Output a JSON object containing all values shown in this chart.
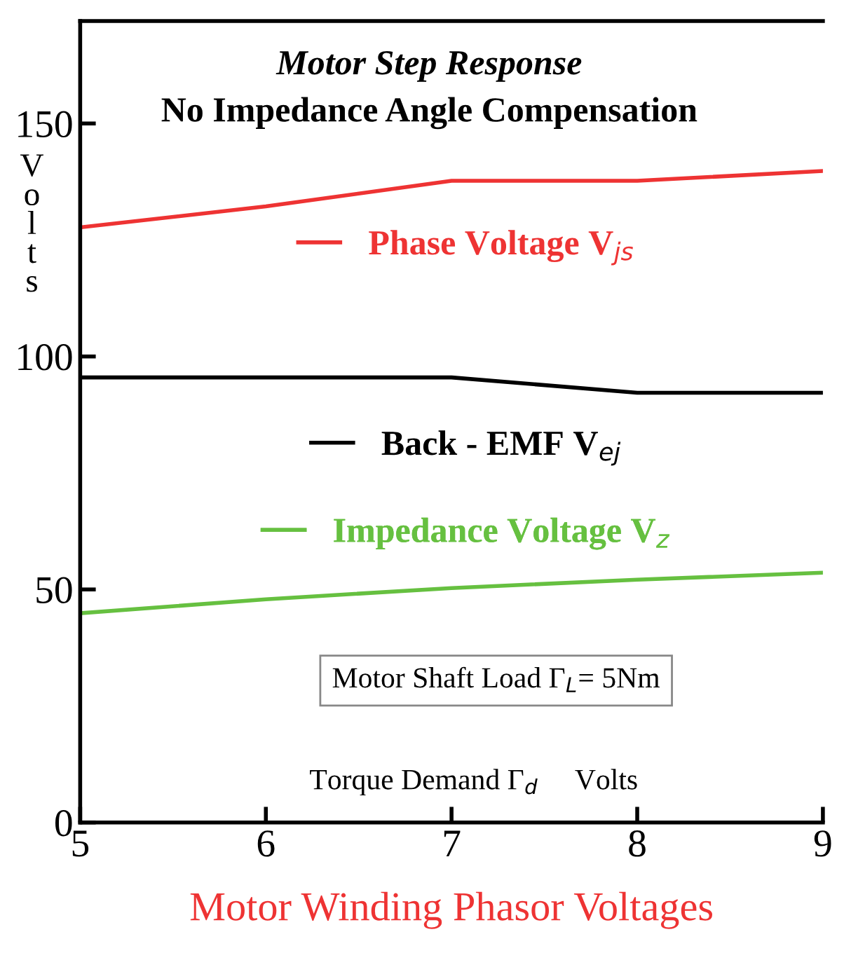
{
  "chart_data": {
    "type": "line",
    "title": "Motor Step Response",
    "subtitle": "No Impedance Angle Compensation",
    "xlabel": "Motor Winding Phasor Voltages",
    "ylabel": "Volts",
    "x": [
      5,
      6,
      7,
      8,
      9
    ],
    "series": [
      {
        "name": "Phase Voltage V$_{js}$",
        "color": "#ee3333",
        "values": [
          127.7,
          132.2,
          137.7,
          137.7,
          139.8
        ]
      },
      {
        "name": "Back - EMF V$_{ej}$",
        "color": "#000000",
        "values": [
          95.5,
          95.5,
          95.5,
          92.2,
          92.2
        ]
      },
      {
        "name": "Impedance Voltage V$_{z}$",
        "color": "#66c040",
        "values": [
          44.9,
          47.9,
          50.3,
          52.1,
          53.6
        ]
      }
    ],
    "annotations": [
      "Motor Shaft Load Γ$_{L}$= 5Nm",
      "Torque Demand Γ$_{d}$     Volts"
    ],
    "xlim": [
      5,
      9
    ],
    "ylim": [
      0,
      172
    ],
    "xticks": [
      5,
      6,
      7,
      8,
      9
    ],
    "yticks": [
      0,
      50,
      100,
      150
    ],
    "grid": false,
    "legend": "center",
    "marker": "none",
    "line_style": "solid"
  }
}
